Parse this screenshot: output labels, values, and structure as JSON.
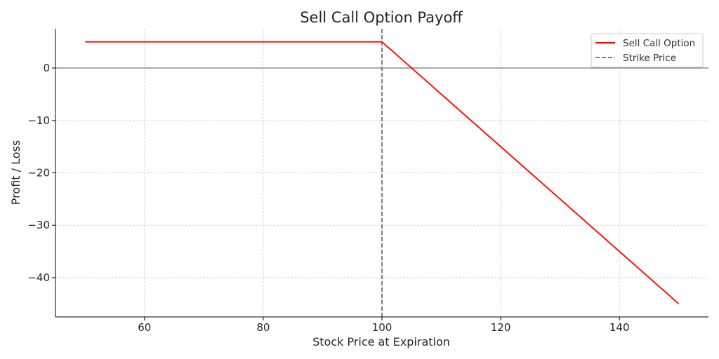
{
  "chart_data": {
    "type": "line",
    "title": "Sell Call Option Payoff",
    "xlabel": "Stock Price at Expiration",
    "ylabel": "Profit / Loss",
    "xlim": [
      45,
      155
    ],
    "ylim": [
      -47.5,
      7.5
    ],
    "xticks": [
      60,
      80,
      100,
      120,
      140
    ],
    "xtick_labels": [
      "60",
      "80",
      "100",
      "120",
      "140"
    ],
    "yticks": [
      0,
      -10,
      -20,
      -30,
      -40
    ],
    "ytick_labels": [
      "0",
      "−10",
      "−20",
      "−30",
      "−40"
    ],
    "grid": true,
    "legend_position": "top-right",
    "zero_line": 0,
    "series": [
      {
        "name": "Sell Call Option",
        "color": "#ff0000",
        "style": "solid",
        "x": [
          50,
          100,
          150
        ],
        "y": [
          5,
          5,
          -45
        ]
      }
    ],
    "reference_lines": [
      {
        "name": "Strike Price",
        "orientation": "vertical",
        "x": 100,
        "color": "#808080",
        "style": "dashed"
      }
    ]
  }
}
